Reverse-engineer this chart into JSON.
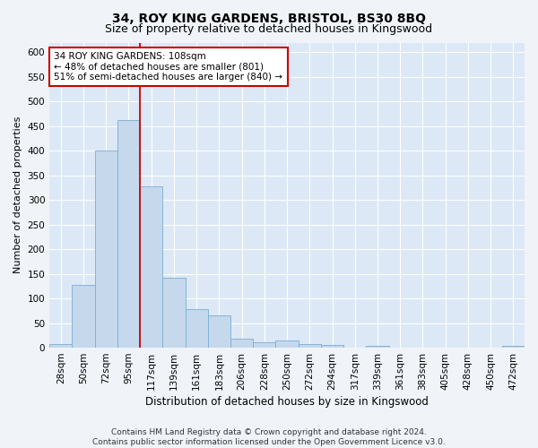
{
  "title": "34, ROY KING GARDENS, BRISTOL, BS30 8BQ",
  "subtitle": "Size of property relative to detached houses in Kingswood",
  "xlabel": "Distribution of detached houses by size in Kingswood",
  "ylabel": "Number of detached properties",
  "bar_color": "#c5d8ec",
  "bar_edge_color": "#7aadd4",
  "background_color": "#dce8f5",
  "grid_color": "#ffffff",
  "fig_facecolor": "#f0f4f9",
  "categories": [
    "28sqm",
    "50sqm",
    "72sqm",
    "95sqm",
    "117sqm",
    "139sqm",
    "161sqm",
    "183sqm",
    "206sqm",
    "228sqm",
    "250sqm",
    "272sqm",
    "294sqm",
    "317sqm",
    "339sqm",
    "361sqm",
    "383sqm",
    "405sqm",
    "428sqm",
    "450sqm",
    "472sqm"
  ],
  "values": [
    8,
    128,
    400,
    462,
    328,
    143,
    79,
    65,
    18,
    11,
    15,
    7,
    5,
    0,
    3,
    0,
    0,
    0,
    0,
    0,
    4
  ],
  "ylim": [
    0,
    620
  ],
  "yticks": [
    0,
    50,
    100,
    150,
    200,
    250,
    300,
    350,
    400,
    450,
    500,
    550,
    600
  ],
  "vline_x": 3.5,
  "vline_color": "#cc0000",
  "ann_title": "34 ROY KING GARDENS: 108sqm",
  "ann_line2": "← 48% of detached houses are smaller (801)",
  "ann_line3": "51% of semi-detached houses are larger (840) →",
  "annotation_box_color": "#ffffff",
  "annotation_box_edge": "#cc0000",
  "footer_line1": "Contains HM Land Registry data © Crown copyright and database right 2024.",
  "footer_line2": "Contains public sector information licensed under the Open Government Licence v3.0.",
  "title_fontsize": 10,
  "subtitle_fontsize": 9,
  "ylabel_fontsize": 8,
  "xlabel_fontsize": 8.5,
  "tick_fontsize": 7.5,
  "footer_fontsize": 6.5,
  "ann_fontsize": 7.5
}
